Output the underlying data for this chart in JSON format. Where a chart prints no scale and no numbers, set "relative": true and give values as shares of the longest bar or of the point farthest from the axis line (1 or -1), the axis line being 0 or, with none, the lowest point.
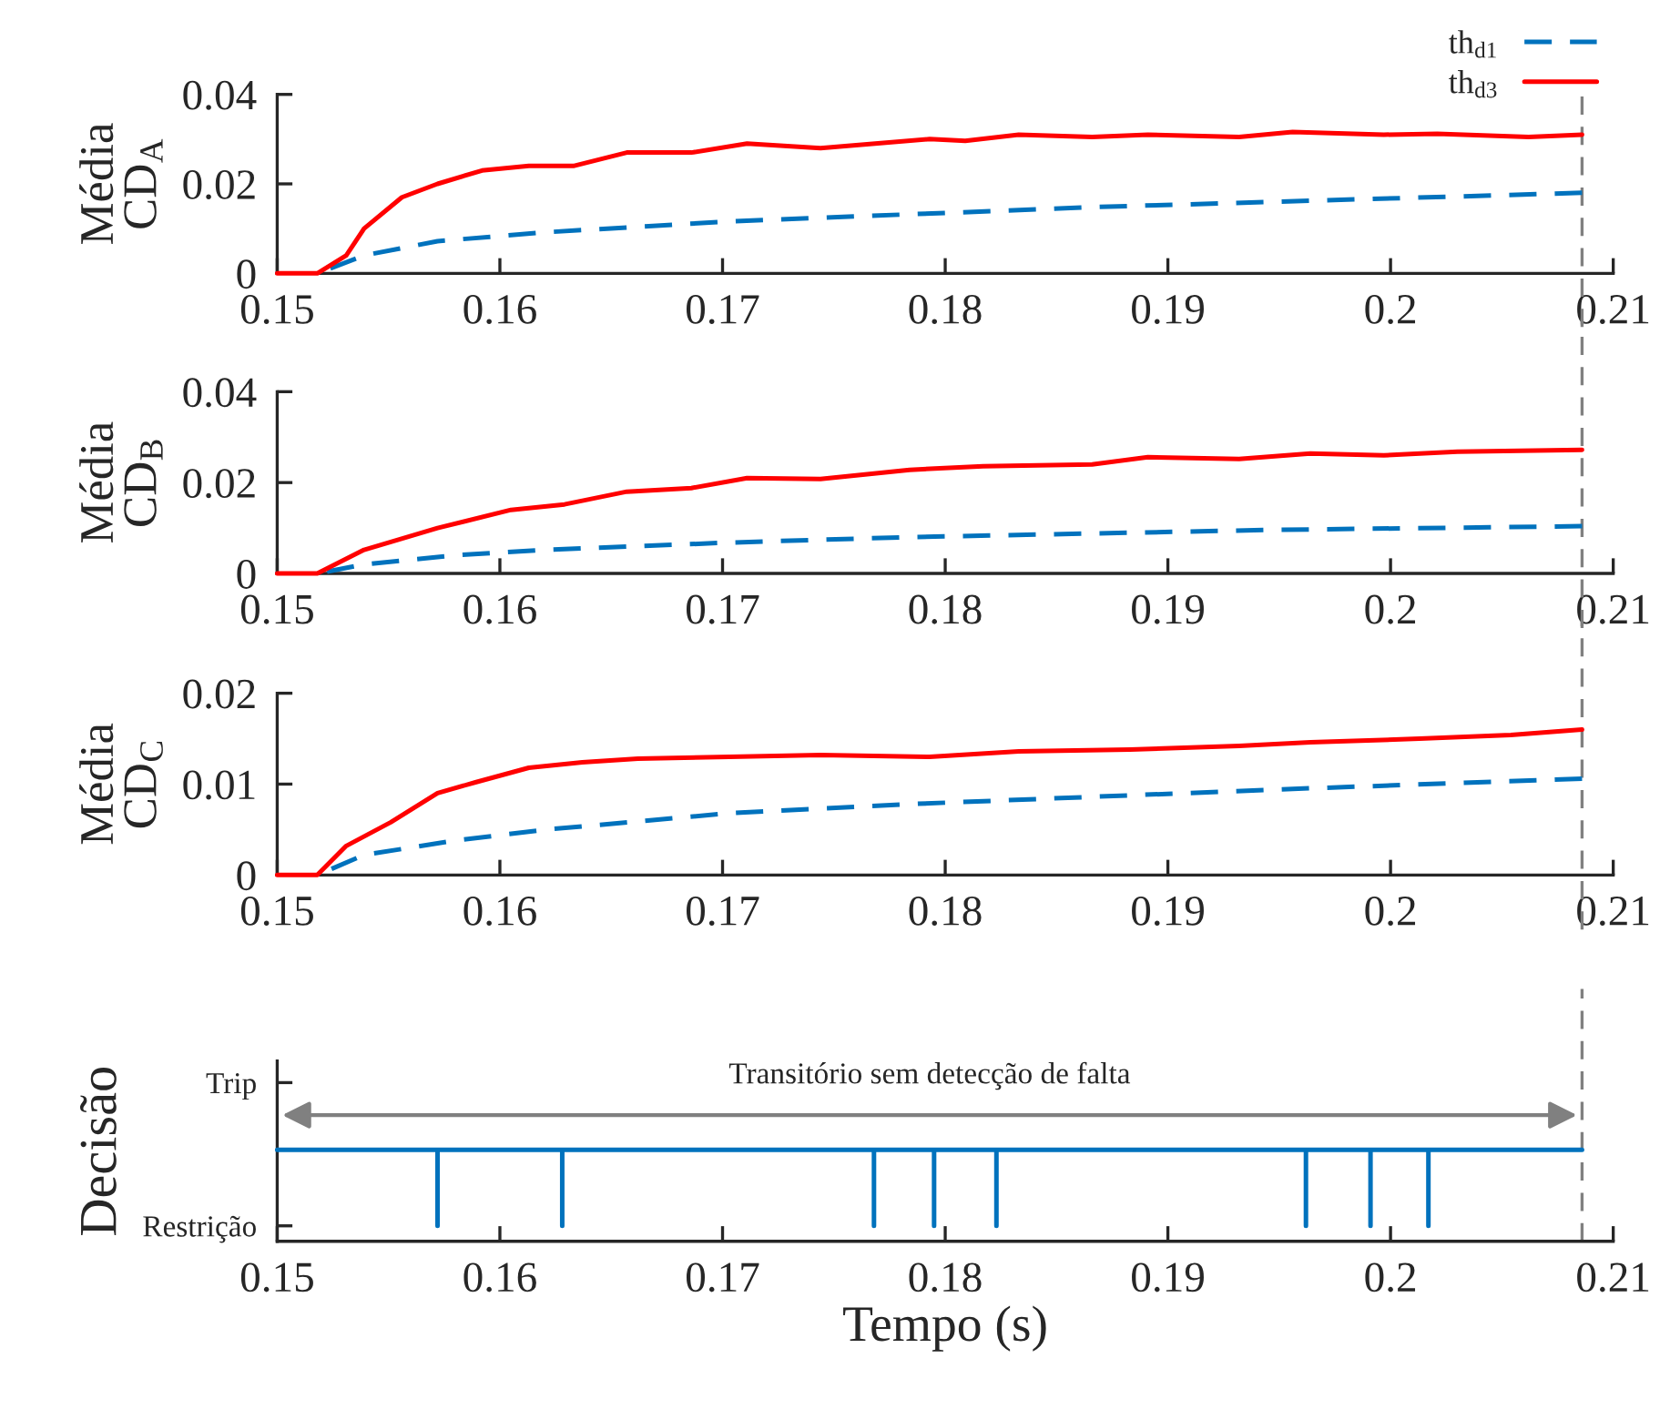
{
  "chart_data": [
    {
      "type": "line",
      "ylabel": "Média\nCD$_{A}$",
      "xlim": [
        0.15,
        0.21
      ],
      "xticks": [
        0.15,
        0.16,
        0.17,
        0.18,
        0.19,
        0.2,
        0.21
      ],
      "ylim": [
        0,
        0.04
      ],
      "yticks": [
        0,
        0.02,
        0.04
      ],
      "grid": false,
      "legend": "top right",
      "series": [
        {
          "name": "th$_{d1}$",
          "color": "#0072bd",
          "line_style": "dashed",
          "x": [
            0.1518,
            0.1539,
            0.1572,
            0.1621,
            0.1662,
            0.1703,
            0.1784,
            0.1866,
            0.1948,
            0.2086
          ],
          "values": [
            0,
            0.004,
            0.0072,
            0.0092,
            0.0104,
            0.0116,
            0.0132,
            0.0148,
            0.016,
            0.018
          ]
        },
        {
          "name": "th$_{d3}$",
          "color": "#ff0000",
          "line_style": "solid",
          "x": [
            0.15,
            0.1518,
            0.1531,
            0.1539,
            0.1556,
            0.1572,
            0.1592,
            0.1613,
            0.1633,
            0.1657,
            0.1686,
            0.1711,
            0.1744,
            0.1793,
            0.1809,
            0.1833,
            0.1866,
            0.1891,
            0.1932,
            0.1956,
            0.1997,
            0.2021,
            0.2062,
            0.2086
          ],
          "values": [
            0,
            0,
            0.004,
            0.01,
            0.017,
            0.02,
            0.023,
            0.024,
            0.024,
            0.027,
            0.027,
            0.029,
            0.028,
            0.03,
            0.0296,
            0.031,
            0.0305,
            0.031,
            0.0305,
            0.0316,
            0.031,
            0.0312,
            0.0305,
            0.031
          ]
        }
      ],
      "ref_lines": [
        {
          "axis": "x",
          "value": 0.2086,
          "color": "#808080",
          "line_style": "dashed"
        }
      ]
    },
    {
      "type": "line",
      "ylabel": "Média\nCD$_{B}$",
      "xlim": [
        0.15,
        0.21
      ],
      "xticks": [
        0.15,
        0.16,
        0.17,
        0.18,
        0.19,
        0.2,
        0.21
      ],
      "ylim": [
        0,
        0.04
      ],
      "yticks": [
        0,
        0.02,
        0.04
      ],
      "grid": false,
      "series": [
        {
          "color": "#0072bd",
          "line_style": "dashed",
          "x": [
            0.1518,
            0.1539,
            0.158,
            0.1621,
            0.1703,
            0.1784,
            0.1866,
            0.1948,
            0.2086
          ],
          "values": [
            0,
            0.002,
            0.004,
            0.0052,
            0.0068,
            0.008,
            0.0088,
            0.0096,
            0.0104
          ]
        },
        {
          "color": "#ff0000",
          "line_style": "solid",
          "x": [
            0.15,
            0.1518,
            0.1539,
            0.1572,
            0.1605,
            0.1629,
            0.1657,
            0.1686,
            0.1711,
            0.1744,
            0.1784,
            0.1817,
            0.1866,
            0.1891,
            0.1932,
            0.1964,
            0.1997,
            0.203,
            0.2086
          ],
          "values": [
            0,
            0,
            0.0052,
            0.01,
            0.014,
            0.0152,
            0.018,
            0.0188,
            0.021,
            0.0208,
            0.0228,
            0.0236,
            0.024,
            0.0256,
            0.0252,
            0.0264,
            0.026,
            0.0268,
            0.0272
          ]
        }
      ],
      "ref_lines": [
        {
          "axis": "x",
          "value": 0.2086,
          "color": "#808080",
          "line_style": "dashed"
        }
      ]
    },
    {
      "type": "line",
      "ylabel": "Média\nCD$_{C}$",
      "xlim": [
        0.15,
        0.21
      ],
      "xticks": [
        0.15,
        0.16,
        0.17,
        0.18,
        0.19,
        0.2,
        0.21
      ],
      "ylim": [
        0,
        0.02
      ],
      "yticks": [
        0,
        0.01,
        0.02
      ],
      "grid": false,
      "series": [
        {
          "color": "#0072bd",
          "line_style": "dashed",
          "x": [
            0.1518,
            0.1539,
            0.158,
            0.1621,
            0.1703,
            0.1784,
            0.1866,
            0.1948,
            0.2086
          ],
          "values": [
            0,
            0.0022,
            0.0038,
            0.005,
            0.0068,
            0.0078,
            0.0086,
            0.0094,
            0.0106
          ]
        },
        {
          "color": "#ff0000",
          "line_style": "solid",
          "x": [
            0.15,
            0.1518,
            0.1531,
            0.1551,
            0.1572,
            0.1589,
            0.1613,
            0.1637,
            0.1662,
            0.1703,
            0.1744,
            0.1793,
            0.1833,
            0.1883,
            0.1932,
            0.1964,
            0.2013,
            0.2054,
            0.2086
          ],
          "values": [
            0,
            0,
            0.0032,
            0.0058,
            0.009,
            0.0102,
            0.0118,
            0.0124,
            0.0128,
            0.013,
            0.0132,
            0.013,
            0.0136,
            0.0138,
            0.0142,
            0.0146,
            0.015,
            0.0154,
            0.016
          ]
        }
      ],
      "ref_lines": [
        {
          "axis": "x",
          "value": 0.2086,
          "color": "#808080",
          "line_style": "dashed"
        }
      ]
    },
    {
      "type": "line",
      "ylabel": "Decisão",
      "xlabel": "Tempo (s)",
      "xlim": [
        0.15,
        0.21
      ],
      "xticks": [
        0.15,
        0.16,
        0.17,
        0.18,
        0.19,
        0.2,
        0.21
      ],
      "relative": true,
      "grid": false,
      "series": [
        {
          "color": "#0072bd",
          "line_style": "solid",
          "x": [
            0.15,
            0.1572,
            0.1572,
            0.1572,
            0.1628,
            0.1628,
            0.1628,
            0.1768,
            0.1768,
            0.1768,
            0.1795,
            0.1795,
            0.1795,
            0.1823,
            0.1823,
            0.1823,
            0.1962,
            0.1962,
            0.1962,
            0.1991,
            0.1991,
            0.1991,
            0.2017,
            0.2017,
            0.2017,
            0.2086
          ],
          "values": [
            1,
            1,
            0.17,
            1,
            1,
            0.17,
            1,
            1,
            0.17,
            1,
            1,
            0.17,
            1,
            1,
            0.17,
            1,
            1,
            0.17,
            1,
            1,
            0.17,
            1,
            1,
            0.17,
            1,
            1
          ]
        }
      ],
      "annotations": [
        "Restrição",
        "Trip",
        "Transitório sem detecção de falta"
      ],
      "ref_lines": [
        {
          "axis": "x",
          "value": 0.2086,
          "color": "#808080",
          "line_style": "dashed"
        }
      ]
    }
  ]
}
